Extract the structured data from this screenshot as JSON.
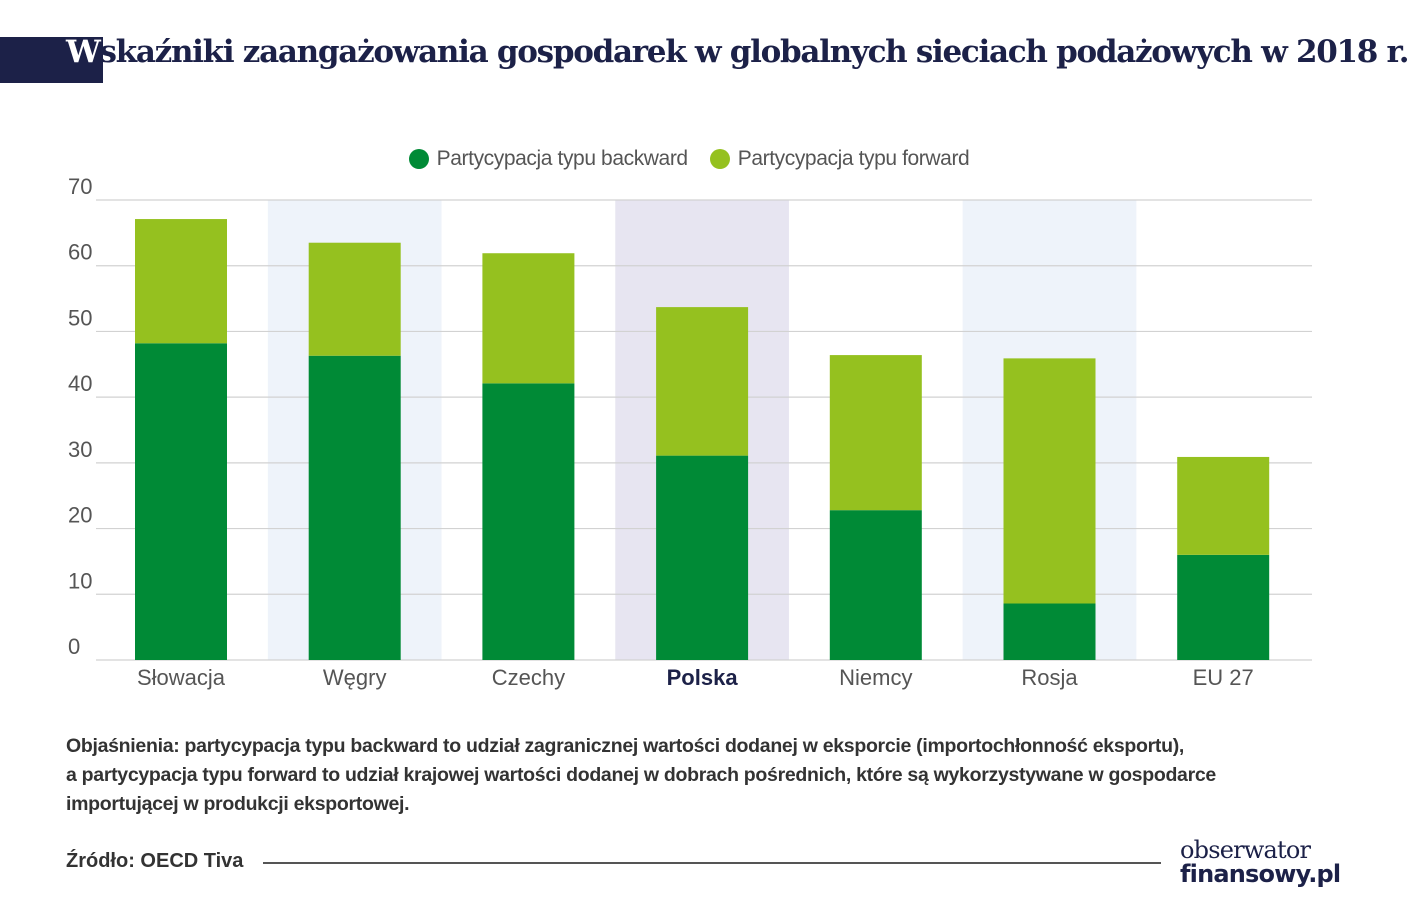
{
  "header": {
    "title_first_letter": "W",
    "title_rest": "skaźniki zaangażowania gospodarek w globalnych sieciach podażowych w 2018 r."
  },
  "chart_data": {
    "type": "bar",
    "stacked": true,
    "categories": [
      "Słowacja",
      "Węgry",
      "Czechy",
      "Polska",
      "Niemcy",
      "Rosja",
      "EU 27"
    ],
    "highlighted_category": "Polska",
    "series": [
      {
        "name": "Partycypacja typu backward",
        "color": "#008a36",
        "values": [
          48.2,
          46.3,
          42.1,
          31.1,
          22.8,
          8.6,
          16.0
        ]
      },
      {
        "name": "Partycypacja typu forward",
        "color": "#95c11f",
        "values": [
          18.9,
          17.2,
          19.8,
          22.6,
          23.6,
          37.3,
          14.9
        ]
      }
    ],
    "ylim": [
      0,
      70
    ],
    "yticks": [
      0,
      10,
      20,
      30,
      40,
      50,
      60,
      70
    ],
    "grid": true,
    "legend_position": "top-center",
    "xlabel": "",
    "ylabel": ""
  },
  "notes": {
    "line1": "Objaśnienia: partycypacja typu backward to udział zagranicznej wartości dodanej w eksporcie (importochłonność eksportu),",
    "line2": "a partycypacja typu forward to udział krajowej wartości dodanej w dobrach pośrednich, które są wykorzystywane w gospodarce",
    "line3": "importującej w produkcji eksportowej."
  },
  "source": "Źródło: OECD Tiva",
  "logo": {
    "line1": "obserwator",
    "line2": "finansowy.pl"
  },
  "colors": {
    "band_light": "#eef3fa",
    "band_highlight": "#e7e5f1",
    "grid": "#d2d2d2",
    "navy": "#1c2148"
  }
}
